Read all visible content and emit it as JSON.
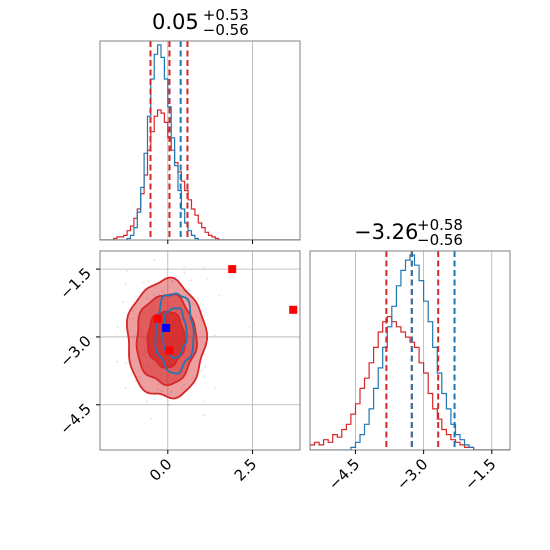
{
  "colors": {
    "red": "#d62728",
    "blue": "#1f77b4",
    "grid": "#b0b0b0",
    "frame": "#808080"
  },
  "chart_data": {
    "type": "corner",
    "parameters": [
      "",
      ""
    ],
    "param1": {
      "title": {
        "value": "0.05",
        "plus": "+0.53",
        "minus": "−0.56"
      },
      "xlim": [
        -2.0,
        3.9
      ],
      "xticks": [
        0.0,
        2.5
      ],
      "xtick_labels": [
        "0.0",
        "2.5"
      ],
      "quantiles_red": [
        -0.51,
        0.05,
        0.58
      ],
      "quantiles_blue": [
        0.38
      ],
      "hist_red": {
        "edges_start": -2.0,
        "bin_width": 0.1,
        "values": [
          0,
          0,
          0,
          0,
          1,
          2,
          2,
          3,
          6,
          9,
          14,
          20,
          30,
          42,
          58,
          70,
          80,
          84,
          82,
          76,
          66,
          58,
          50,
          44,
          38,
          32,
          26,
          20,
          16,
          11,
          8,
          5,
          3,
          2,
          1,
          0,
          0,
          0,
          0,
          0,
          0,
          0,
          0,
          0,
          0,
          0,
          0,
          0,
          0,
          0,
          0,
          0,
          0,
          0,
          0,
          0,
          0,
          0,
          0
        ]
      },
      "hist_blue": {
        "edges_start": -2.0,
        "bin_width": 0.1,
        "values": [
          0,
          0,
          0,
          0,
          0,
          0,
          0,
          0,
          1,
          3,
          8,
          18,
          34,
          56,
          80,
          104,
          120,
          126,
          118,
          104,
          86,
          66,
          48,
          32,
          20,
          11,
          6,
          3,
          1,
          0,
          0,
          0,
          0,
          0,
          0,
          0,
          0,
          0,
          0,
          0,
          0,
          0,
          0,
          0,
          0,
          0,
          0,
          0,
          0,
          0,
          0,
          0,
          0,
          0,
          0,
          0,
          0,
          0,
          0
        ]
      }
    },
    "param2": {
      "title": {
        "value": "−3.26",
        "plus": "+0.58",
        "minus": "−0.56"
      },
      "xlim": [
        -5.5,
        -1.1
      ],
      "xticks": [
        -4.5,
        -3.0,
        -1.5
      ],
      "xtick_labels": [
        "−4.5",
        "−3.0",
        "−1.5"
      ],
      "quantiles_red": [
        -3.82,
        -3.26,
        -2.68
      ],
      "quantiles_blue": [
        -3.26,
        -2.32
      ],
      "hist_red": {
        "edges_start": -5.5,
        "bin_width": 0.1,
        "values": [
          2,
          3,
          2,
          4,
          3,
          6,
          5,
          8,
          10,
          14,
          18,
          24,
          28,
          34,
          40,
          46,
          50,
          52,
          50,
          48,
          46,
          44,
          42,
          40,
          34,
          30,
          22,
          16,
          12,
          8,
          6,
          4,
          3,
          2,
          1,
          1,
          0,
          0,
          0,
          0,
          0,
          0,
          0,
          0
        ]
      },
      "hist_blue": {
        "edges_start": -5.5,
        "bin_width": 0.1,
        "values": [
          0,
          0,
          0,
          0,
          0,
          0,
          0,
          0,
          0,
          1,
          3,
          6,
          10,
          16,
          24,
          32,
          40,
          48,
          56,
          64,
          70,
          74,
          76,
          72,
          66,
          58,
          50,
          40,
          30,
          22,
          16,
          10,
          6,
          4,
          2,
          1,
          0,
          0,
          0,
          0,
          0,
          0,
          0,
          0
        ]
      }
    },
    "scatter_2d": {
      "xlim": [
        -2.0,
        3.9
      ],
      "ylim": [
        -5.5,
        -1.1
      ],
      "yticks": [
        -1.5,
        -3.0,
        -4.5
      ],
      "ytick_labels": [
        "−1.5",
        "−3.0",
        "−4.5"
      ],
      "red_markers": [
        [
          1.9,
          -1.5
        ],
        [
          3.7,
          -2.4
        ],
        [
          -0.3,
          -2.6
        ],
        [
          0.05,
          -3.3
        ]
      ],
      "blue_markers": [
        [
          -0.05,
          -2.8
        ]
      ],
      "red_contours_sigma": [
        1.0,
        1.6,
        2.1
      ],
      "red_center": [
        -0.05,
        -3.05
      ],
      "red_spread": [
        0.55,
        0.62
      ],
      "blue_contours_sigma": [
        1.0,
        1.6
      ],
      "blue_center": [
        0.2,
        -2.9
      ],
      "blue_spread": [
        0.35,
        0.55
      ]
    }
  }
}
